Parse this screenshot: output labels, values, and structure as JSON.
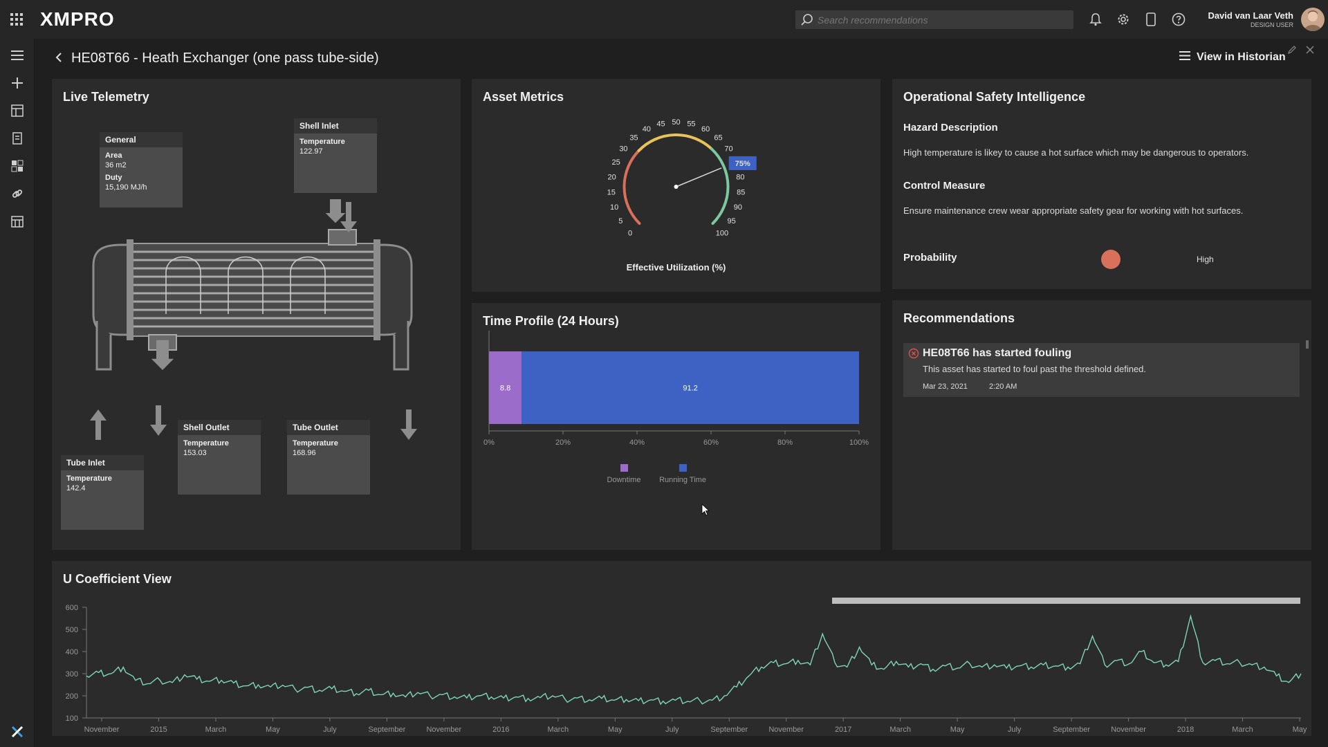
{
  "app": {
    "brand": "XMPRO",
    "search_placeholder": "Search recommendations",
    "user_name": "David van Laar Veth",
    "user_role": "DESIGN USER"
  },
  "page": {
    "title": "HE08T66 - Heath Exchanger (one pass tube-side)",
    "historian_label": "View in Historian"
  },
  "telemetry": {
    "title": "Live Telemetry",
    "general": {
      "header": "General",
      "area_label": "Area",
      "area_value": "36 m2",
      "duty_label": "Duty",
      "duty_value": "15,190 MJ/h"
    },
    "shell_inlet": {
      "header": "Shell Inlet",
      "label": "Temperature",
      "value": "122.97"
    },
    "shell_outlet": {
      "header": "Shell Outlet",
      "label": "Temperature",
      "value": "153.03"
    },
    "tube_outlet": {
      "header": "Tube Outlet",
      "label": "Temperature",
      "value": "168.96"
    },
    "tube_inlet": {
      "header": "Tube Inlet",
      "label": "Temperature",
      "value": "142.4"
    }
  },
  "metrics": {
    "title": "Asset Metrics",
    "gauge_label": "Effective Utilization (%)",
    "gauge_value": 75,
    "gauge_value_text": "75%",
    "gauge_ticks": [
      "0",
      "5",
      "10",
      "15",
      "20",
      "25",
      "30",
      "35",
      "40",
      "45",
      "50",
      "55",
      "60",
      "65",
      "70",
      "75",
      "80",
      "85",
      "90",
      "95",
      "100"
    ]
  },
  "time_profile": {
    "title": "Time Profile (24 Hours)",
    "chart_data": {
      "type": "bar",
      "orientation": "horizontal-stacked",
      "series": [
        {
          "name": "Downtime",
          "values": [
            8.8
          ],
          "color": "#9b6cc9"
        },
        {
          "name": "Running Time",
          "values": [
            91.2
          ],
          "color": "#3d62c3"
        }
      ],
      "xlim": [
        0,
        100
      ],
      "x_ticks": [
        "0%",
        "20%",
        "40%",
        "60%",
        "80%",
        "100%"
      ],
      "legend": "bottom"
    }
  },
  "safety": {
    "title": "Operational Safety Intelligence",
    "hazard_title": "Hazard Description",
    "hazard_text": "High temperature is likey to cause a hot surface which may be dangerous to operators.",
    "control_title": "Control Measure",
    "control_text": "Ensure maintenance crew wear appropriate safety gear for working with hot surfaces.",
    "probability_label": "Probability",
    "probability_value": "High",
    "probability_color": "#d9705c"
  },
  "recommendations": {
    "title": "Recommendations",
    "items": [
      {
        "title": "HE08T66 has started fouling",
        "desc": "This asset has started to foul past the threshold defined.",
        "date": "Mar 23, 2021",
        "time": "2:20 AM"
      }
    ]
  },
  "ucoef": {
    "title": "U Coefficient View",
    "chart_data": {
      "type": "line",
      "series": [
        {
          "color": "#7fd6b8"
        }
      ],
      "x_labels": [
        "November",
        "2015",
        "March",
        "May",
        "July",
        "September",
        "November",
        "2016",
        "March",
        "May",
        "July",
        "September",
        "November",
        "2017",
        "March",
        "May",
        "July",
        "September",
        "November",
        "2018",
        "March",
        "May"
      ],
      "y_ticks": [
        100,
        200,
        300,
        400,
        500,
        600
      ],
      "ylim": [
        100,
        600
      ],
      "points": [
        [
          0,
          290
        ],
        [
          1,
          305
        ],
        [
          2,
          300
        ],
        [
          3,
          330
        ],
        [
          4,
          270
        ],
        [
          5,
          255
        ],
        [
          6,
          270
        ],
        [
          7,
          260
        ],
        [
          8,
          295
        ],
        [
          9,
          275
        ],
        [
          10,
          265
        ],
        [
          11,
          270
        ],
        [
          12,
          258
        ],
        [
          13,
          245
        ],
        [
          14,
          250
        ],
        [
          15,
          240
        ],
        [
          16,
          248
        ],
        [
          17,
          230
        ],
        [
          18,
          238
        ],
        [
          19,
          225
        ],
        [
          20,
          232
        ],
        [
          21,
          220
        ],
        [
          22,
          210
        ],
        [
          23,
          225
        ],
        [
          24,
          205
        ],
        [
          25,
          212
        ],
        [
          26,
          195
        ],
        [
          27,
          215
        ],
        [
          28,
          200
        ],
        [
          29,
          205
        ],
        [
          30,
          195
        ],
        [
          31,
          190
        ],
        [
          32,
          200
        ],
        [
          33,
          195
        ],
        [
          34,
          190
        ],
        [
          35,
          195
        ],
        [
          36,
          188
        ],
        [
          37,
          192
        ],
        [
          38,
          200
        ],
        [
          39,
          185
        ],
        [
          40,
          190
        ],
        [
          41,
          182
        ],
        [
          42,
          188
        ],
        [
          43,
          180
        ],
        [
          44,
          183
        ],
        [
          45,
          178
        ],
        [
          46,
          182
        ],
        [
          47,
          176
        ],
        [
          48,
          180
        ],
        [
          49,
          175
        ],
        [
          50,
          178
        ],
        [
          51,
          180
        ],
        [
          52,
          200
        ],
        [
          53,
          240
        ],
        [
          54,
          290
        ],
        [
          55,
          330
        ],
        [
          56,
          350
        ],
        [
          57,
          345
        ],
        [
          58,
          360
        ],
        [
          59,
          340
        ],
        [
          60,
          480
        ],
        [
          61,
          350
        ],
        [
          62,
          330
        ],
        [
          63,
          420
        ],
        [
          64,
          340
        ],
        [
          65,
          320
        ],
        [
          66,
          355
        ],
        [
          67,
          330
        ],
        [
          68,
          345
        ],
        [
          69,
          320
        ],
        [
          70,
          335
        ],
        [
          71,
          325
        ],
        [
          72,
          345
        ],
        [
          73,
          330
        ],
        [
          74,
          340
        ],
        [
          75,
          325
        ],
        [
          76,
          335
        ],
        [
          77,
          330
        ],
        [
          78,
          340
        ],
        [
          79,
          335
        ],
        [
          80,
          330
        ],
        [
          81,
          345
        ],
        [
          82,
          470
        ],
        [
          83,
          340
        ],
        [
          84,
          360
        ],
        [
          85,
          345
        ],
        [
          86,
          400
        ],
        [
          87,
          350
        ],
        [
          88,
          340
        ],
        [
          89,
          355
        ],
        [
          90,
          560
        ],
        [
          91,
          350
        ],
        [
          92,
          360
        ],
        [
          93,
          345
        ],
        [
          94,
          350
        ],
        [
          95,
          340
        ],
        [
          96,
          330
        ],
        [
          97,
          290
        ],
        [
          98,
          260
        ],
        [
          99,
          300
        ]
      ]
    }
  }
}
